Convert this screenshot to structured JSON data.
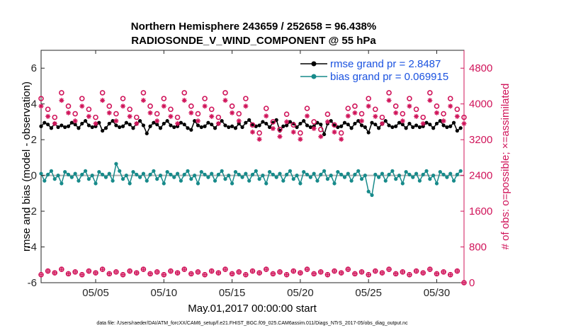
{
  "chart_data": {
    "type": "line",
    "title": "Northern Hemisphere 243659 / 252658 = 96.438%",
    "subtitle": "RADIOSONDE_V_WIND_COMPONENT @ 55 hPa",
    "xlabel": "May.01,2017 00:00:00 start",
    "ylabel": "rmse and bias (model - observation)",
    "y2label": "# of obs: o=possible; ×=assimilated",
    "footer": "data file: /Users/raeder/DAI/ATM_forcXX/CAM6_setup/f.e21.FHIST_BGC.f09_025.CAM6assim.011/Diags_NTrS_2017-05/obs_diag_output.nc",
    "xlim": [
      1,
      32
    ],
    "ylim": [
      -6,
      7
    ],
    "y2lim": [
      0,
      5200
    ],
    "x_ticks": [
      5,
      10,
      15,
      20,
      25,
      30
    ],
    "x_tick_labels": [
      "05/05",
      "05/10",
      "05/15",
      "05/20",
      "05/25",
      "05/30"
    ],
    "y_ticks": [
      -6,
      -4,
      -2,
      0,
      2,
      4,
      6
    ],
    "y_tick_labels": [
      "-6",
      "-4",
      "-2",
      "0",
      "2",
      "4",
      "6"
    ],
    "y2_ticks": [
      0,
      800,
      1600,
      2400,
      3200,
      4000,
      4800
    ],
    "y2_tick_labels": [
      "0",
      "800",
      "1600",
      "2400",
      "3200",
      "4000",
      "4800"
    ],
    "legend": [
      "rmse grand pr = 2.8487",
      "bias grand pr = 0.069915"
    ],
    "colors": {
      "rmse": "#000000",
      "bias": "#178a8a",
      "obs": "#d0145a",
      "zero": "#b0b0b0"
    },
    "rmse_pattern": [
      2.75,
      2.95,
      2.85,
      2.65,
      2.9,
      3.05,
      2.8,
      2.7
    ],
    "bias_pattern": [
      0.1,
      -0.3,
      0.05,
      0.25,
      -0.2,
      0.0,
      -0.45,
      0.2,
      0.05,
      -0.1
    ],
    "possible_pattern": [
      4120,
      3880,
      3700,
      4250,
      3950,
      3780
    ],
    "assimilated_pattern": [
      3950,
      3720,
      3560,
      4080,
      3800,
      3620
    ],
    "series": [
      {
        "name": "rmse",
        "values_desc": "about 2.5 to 3.1, 4 obs per day"
      },
      {
        "name": "bias",
        "values_desc": "about -0.3 to 0.3, dip to -1.1 near 05/25"
      }
    ]
  }
}
